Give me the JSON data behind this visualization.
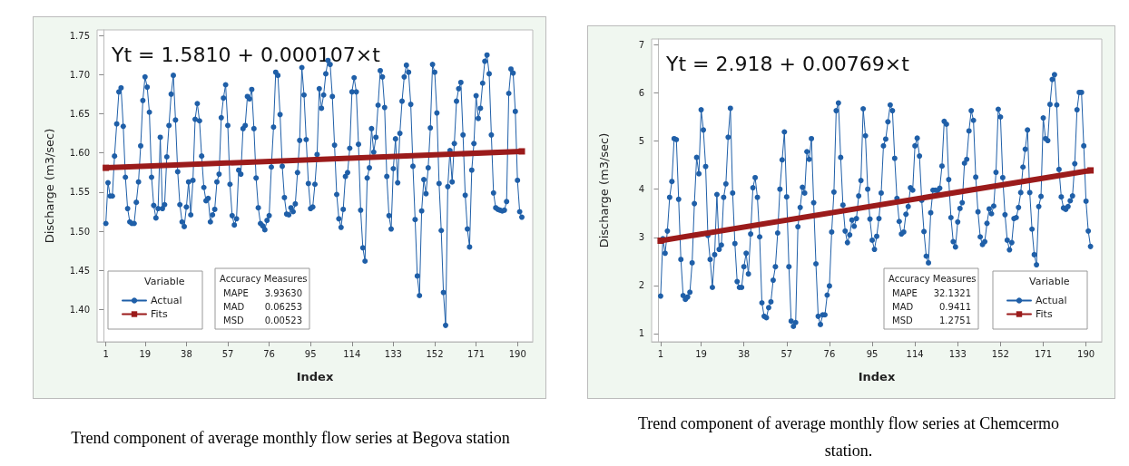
{
  "chart_data": [
    {
      "type": "line",
      "title": "Trend component of average monthly flow series at Begova station",
      "xlabel": "Index",
      "ylabel": "Discharge (m3/sec)",
      "legend_title": "Variable",
      "legend": "bottom left",
      "grid": false,
      "xlim": [
        -3,
        197
      ],
      "xticks": [
        1,
        19,
        38,
        57,
        76,
        95,
        114,
        133,
        152,
        171,
        190
      ],
      "ylim": [
        1.359,
        1.757
      ],
      "yticks": [
        {
          "value": 1.4,
          "label": "1.40"
        },
        {
          "value": 1.45,
          "label": "1.45"
        },
        {
          "value": 1.5,
          "label": "1.50"
        },
        {
          "value": 1.55,
          "label": "1.55"
        },
        {
          "value": 1.6,
          "label": "1.60"
        },
        {
          "value": 1.65,
          "label": "1.65"
        },
        {
          "value": 1.7,
          "label": "1.70"
        },
        {
          "value": 1.75,
          "label": "1.75"
        }
      ],
      "annotations": [
        "Yt = 1.5810 + 0.000107×t",
        "Accuracy Measures",
        "MAPE",
        "3.93630",
        "MAD",
        "0.06253",
        "MSD",
        "0.00523"
      ],
      "series": [
        {
          "name": "Actual",
          "color": "#1f5fa8",
          "marker": "circle",
          "x": [
            1,
            2,
            3,
            4,
            5,
            6,
            7,
            8,
            9,
            10,
            11,
            12,
            13,
            14,
            15,
            16,
            17,
            18,
            19,
            20,
            21,
            22,
            23,
            24,
            25,
            26,
            27,
            28,
            29,
            30,
            31,
            32,
            33,
            34,
            35,
            36,
            37,
            38,
            39,
            40,
            41,
            42,
            43,
            44,
            45,
            46,
            47,
            48,
            49,
            50,
            51,
            52,
            53,
            54,
            55,
            56,
            57,
            58,
            59,
            60,
            61,
            62,
            63,
            64,
            65,
            66,
            67,
            68,
            69,
            70,
            71,
            72,
            73,
            74,
            75,
            76,
            77,
            78,
            79,
            80,
            81,
            82,
            83,
            84,
            85,
            86,
            87,
            88,
            89,
            90,
            91,
            92,
            93,
            94,
            95,
            96,
            97,
            98,
            99,
            100,
            101,
            102,
            103,
            104,
            105,
            106,
            107,
            108,
            109,
            110,
            111,
            112,
            113,
            114,
            115,
            116,
            117,
            118,
            119,
            120,
            121,
            122,
            123,
            124,
            125,
            126,
            127,
            128,
            129,
            130,
            131,
            132,
            133,
            134,
            135,
            136,
            137,
            138,
            139,
            140,
            141,
            142,
            143,
            144,
            145,
            146,
            147,
            148,
            149,
            150,
            151,
            152,
            153,
            154,
            155,
            156,
            157,
            158,
            159,
            160,
            161,
            162,
            163,
            164,
            165,
            166,
            167,
            168,
            169,
            170,
            171,
            172,
            173,
            174,
            175,
            176,
            177,
            178,
            179,
            180,
            181,
            182,
            183,
            184,
            185,
            186,
            187,
            188,
            189,
            190,
            191,
            192
          ],
          "values": [
            1.51,
            1.562,
            1.545,
            1.545,
            1.596,
            1.637,
            1.678,
            1.683,
            1.634,
            1.569,
            1.529,
            1.512,
            1.51,
            1.51,
            1.537,
            1.563,
            1.609,
            1.667,
            1.697,
            1.684,
            1.652,
            1.569,
            1.533,
            1.517,
            1.529,
            1.62,
            1.529,
            1.534,
            1.595,
            1.635,
            1.675,
            1.699,
            1.642,
            1.576,
            1.534,
            1.512,
            1.506,
            1.531,
            1.563,
            1.521,
            1.565,
            1.643,
            1.663,
            1.641,
            1.596,
            1.556,
            1.539,
            1.542,
            1.512,
            1.521,
            1.528,
            1.563,
            1.573,
            1.645,
            1.67,
            1.687,
            1.635,
            1.56,
            1.52,
            1.508,
            1.516,
            1.578,
            1.573,
            1.631,
            1.635,
            1.672,
            1.669,
            1.681,
            1.631,
            1.568,
            1.53,
            1.51,
            1.507,
            1.502,
            1.514,
            1.52,
            1.582,
            1.633,
            1.703,
            1.699,
            1.649,
            1.583,
            1.543,
            1.522,
            1.521,
            1.53,
            1.525,
            1.535,
            1.575,
            1.616,
            1.709,
            1.674,
            1.617,
            1.561,
            1.529,
            1.531,
            1.56,
            1.598,
            1.682,
            1.657,
            1.674,
            1.701,
            1.718,
            1.713,
            1.672,
            1.61,
            1.547,
            1.516,
            1.505,
            1.528,
            1.57,
            1.575,
            1.606,
            1.678,
            1.696,
            1.678,
            1.611,
            1.527,
            1.479,
            1.462,
            1.568,
            1.581,
            1.631,
            1.601,
            1.62,
            1.661,
            1.705,
            1.697,
            1.658,
            1.57,
            1.52,
            1.503,
            1.58,
            1.618,
            1.562,
            1.625,
            1.666,
            1.697,
            1.712,
            1.703,
            1.662,
            1.583,
            1.515,
            1.443,
            1.418,
            1.526,
            1.566,
            1.548,
            1.581,
            1.632,
            1.713,
            1.703,
            1.651,
            1.561,
            1.501,
            1.422,
            1.38,
            1.557,
            1.603,
            1.563,
            1.612,
            1.666,
            1.682,
            1.69,
            1.623,
            1.546,
            1.503,
            1.48,
            1.578,
            1.612,
            1.673,
            1.644,
            1.657,
            1.689,
            1.717,
            1.725,
            1.701,
            1.623,
            1.549,
            1.53,
            1.528,
            1.527,
            1.526,
            1.527,
            1.538,
            1.676,
            1.707,
            1.702,
            1.653,
            1.565,
            1.525,
            1.518
          ]
        },
        {
          "name": "Fits",
          "type": "line",
          "color": "#9b1b1b",
          "marker": "square",
          "x": [
            1,
            192
          ],
          "values": [
            1.581,
            1.602
          ]
        }
      ]
    },
    {
      "type": "line",
      "title": "Trend component of average monthly flow series at Chemcermo station.",
      "xlabel": "Index",
      "ylabel": "Discharge (m3/sec)",
      "legend_title": "Variable",
      "legend": "bottom right",
      "grid": false,
      "xlim": [
        -3,
        197
      ],
      "xticks": [
        1,
        19,
        38,
        57,
        76,
        95,
        114,
        133,
        152,
        171,
        190
      ],
      "ylim": [
        0.83,
        7.12
      ],
      "yticks": [
        1,
        2,
        3,
        4,
        5,
        6,
        7
      ],
      "annotations": [
        "Yt = 2.918 + 0.00769×t",
        "Accuracy Measures",
        "MAPE",
        "32.1321",
        "MAD",
        "0.9411",
        "MSD",
        "1.2751"
      ],
      "series": [
        {
          "name": "Actual",
          "color": "#1f5fa8",
          "marker": "circle",
          "x": [
            1,
            2,
            3,
            4,
            5,
            6,
            7,
            8,
            9,
            10,
            11,
            12,
            13,
            14,
            15,
            16,
            17,
            18,
            19,
            20,
            21,
            22,
            23,
            24,
            25,
            26,
            27,
            28,
            29,
            30,
            31,
            32,
            33,
            34,
            35,
            36,
            37,
            38,
            39,
            40,
            41,
            42,
            43,
            44,
            45,
            46,
            47,
            48,
            49,
            50,
            51,
            52,
            53,
            54,
            55,
            56,
            57,
            58,
            59,
            60,
            61,
            62,
            63,
            64,
            65,
            66,
            67,
            68,
            69,
            70,
            71,
            72,
            73,
            74,
            75,
            76,
            77,
            78,
            79,
            80,
            81,
            82,
            83,
            84,
            85,
            86,
            87,
            88,
            89,
            90,
            91,
            92,
            93,
            94,
            95,
            96,
            97,
            98,
            99,
            100,
            101,
            102,
            103,
            104,
            105,
            106,
            107,
            108,
            109,
            110,
            111,
            112,
            113,
            114,
            115,
            116,
            117,
            118,
            119,
            120,
            121,
            122,
            123,
            124,
            125,
            126,
            127,
            128,
            129,
            130,
            131,
            132,
            133,
            134,
            135,
            136,
            137,
            138,
            139,
            140,
            141,
            142,
            143,
            144,
            145,
            146,
            147,
            148,
            149,
            150,
            151,
            152,
            153,
            154,
            155,
            156,
            157,
            158,
            159,
            160,
            161,
            162,
            163,
            164,
            165,
            166,
            167,
            168,
            169,
            170,
            171,
            172,
            173,
            174,
            175,
            176,
            177,
            178,
            179,
            180,
            181,
            182,
            183,
            184,
            185,
            186,
            187,
            188,
            189,
            190,
            191,
            192
          ],
          "values": [
            1.78,
            2.97,
            2.67,
            3.13,
            3.83,
            4.16,
            5.05,
            5.03,
            3.79,
            2.54,
            1.79,
            1.71,
            1.76,
            1.86,
            2.47,
            3.7,
            4.66,
            4.32,
            5.65,
            5.23,
            4.47,
            3.04,
            2.54,
            1.96,
            2.64,
            3.89,
            2.75,
            2.84,
            3.83,
            4.11,
            5.08,
            5.68,
            3.92,
            2.87,
            2.08,
            1.96,
            1.96,
            2.39,
            2.67,
            2.24,
            3.07,
            4.03,
            4.24,
            3.83,
            3.01,
            1.64,
            1.36,
            1.33,
            1.54,
            1.66,
            2.11,
            2.39,
            3.09,
            4.0,
            4.61,
            5.19,
            3.84,
            2.39,
            1.26,
            1.15,
            1.23,
            3.22,
            3.62,
            4.04,
            3.92,
            4.78,
            4.62,
            5.05,
            3.72,
            2.45,
            1.36,
            1.19,
            1.39,
            1.39,
            1.8,
            1.99,
            3.11,
            3.94,
            5.63,
            5.79,
            4.66,
            3.67,
            3.13,
            2.89,
            3.05,
            3.36,
            3.23,
            3.39,
            3.86,
            4.18,
            5.67,
            5.11,
            4.0,
            3.38,
            2.94,
            2.75,
            3.02,
            3.39,
            3.92,
            4.9,
            5.04,
            5.4,
            5.75,
            5.63,
            4.64,
            3.81,
            3.33,
            3.07,
            3.11,
            3.48,
            3.64,
            4.03,
            3.98,
            4.9,
            5.06,
            4.69,
            3.77,
            3.12,
            2.61,
            2.47,
            3.51,
            3.98,
            3.98,
            3.97,
            4.02,
            4.48,
            5.41,
            5.35,
            4.2,
            3.41,
            2.91,
            2.8,
            3.32,
            3.6,
            3.72,
            4.54,
            4.62,
            5.21,
            5.63,
            5.43,
            4.25,
            3.53,
            3.01,
            2.85,
            2.91,
            3.29,
            3.59,
            3.49,
            3.65,
            4.35,
            5.66,
            5.5,
            4.24,
            3.47,
            2.94,
            2.74,
            2.89,
            3.39,
            3.41,
            3.62,
            3.93,
            4.46,
            4.83,
            5.23,
            3.93,
            3.17,
            2.64,
            2.43,
            3.64,
            3.85,
            5.48,
            5.05,
            5.01,
            5.76,
            6.28,
            6.38,
            5.75,
            4.41,
            3.84,
            3.61,
            3.58,
            3.64,
            3.76,
            3.86,
            4.53,
            5.65,
            6.01,
            6.01,
            4.9,
            3.75,
            3.13,
            2.81
          ]
        },
        {
          "name": "Fits",
          "type": "line",
          "color": "#9b1b1b",
          "marker": "square",
          "x": [
            1,
            192
          ],
          "values": [
            2.93,
            4.39
          ]
        }
      ]
    }
  ]
}
